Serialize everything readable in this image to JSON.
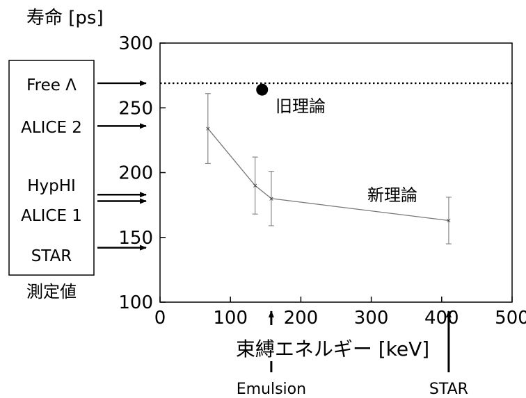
{
  "chart_data": {
    "type": "line",
    "ylabel": "寿命 [ps]",
    "xlabel": "束縛エネルギー [keV]",
    "xlim": [
      0,
      500
    ],
    "ylim": [
      100,
      300
    ],
    "x_ticks": [
      "0",
      "100",
      "200",
      "300",
      "400",
      "500"
    ],
    "y_ticks": [
      "100",
      "150",
      "200",
      "250",
      "300"
    ],
    "grid": false,
    "series": [
      {
        "name": "新理論",
        "points": [
          {
            "x": 68,
            "y": 234,
            "err_low": 207,
            "err_high": 261
          },
          {
            "x": 135,
            "y": 190,
            "err_low": 168,
            "err_high": 212
          },
          {
            "x": 158,
            "y": 180,
            "err_low": 159,
            "err_high": 201
          },
          {
            "x": 410,
            "y": 163,
            "err_low": 145,
            "err_high": 181
          }
        ]
      },
      {
        "name": "旧理論",
        "points": [
          {
            "x": 145,
            "y": 264
          }
        ]
      }
    ],
    "reference_line": {
      "y": 269,
      "style": "dotted"
    },
    "annotations": {
      "old_theory": "旧理論",
      "new_theory": "新理論"
    },
    "measurements": {
      "box_label": "測定値",
      "items": [
        {
          "label": "Free Λ",
          "y": 269
        },
        {
          "label": "ALICE 2",
          "y": 236
        },
        {
          "label": "HypHI",
          "y": 183
        },
        {
          "label": "ALICE 1",
          "y": 178
        },
        {
          "label": "STAR",
          "y": 142
        }
      ]
    },
    "binding_arrows": [
      {
        "label": "Emulsion",
        "x": 158
      },
      {
        "label": "STAR",
        "x": 410
      }
    ]
  }
}
